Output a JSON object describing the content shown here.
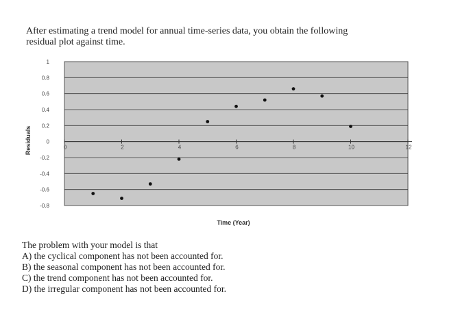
{
  "intro": {
    "line1": "After estimating a trend model for annual time-series data, you obtain the following",
    "line2": "residual plot against time."
  },
  "chart_data": {
    "type": "scatter",
    "xlabel": "Time (Year)",
    "ylabel": "Residuals",
    "x": [
      1,
      2,
      3,
      4,
      5,
      6,
      7,
      8,
      9,
      10
    ],
    "y": [
      -0.65,
      -0.71,
      -0.53,
      -0.22,
      0.25,
      0.44,
      0.52,
      0.66,
      0.57,
      0.19
    ],
    "xlim": [
      0,
      12
    ],
    "ylim": [
      -0.8,
      1
    ],
    "xticks": [
      "0",
      "2",
      "4",
      "6",
      "8",
      "10",
      "12"
    ],
    "yticks": [
      "1",
      "0.8",
      "0.6",
      "0.4",
      "0.2",
      "0",
      "-0.2",
      "-0.4",
      "-0.6",
      "-0.8"
    ],
    "grid": true,
    "plot_bg": "#c8c8c8",
    "marker_color": "#111111"
  },
  "question": {
    "stem": "The problem with your model is that",
    "options": [
      "A) the cyclical component has not been accounted for.",
      "B) the seasonal component has not been accounted for.",
      "C) the trend component has not been accounted for.",
      "D) the irregular component has not been accounted for."
    ]
  }
}
